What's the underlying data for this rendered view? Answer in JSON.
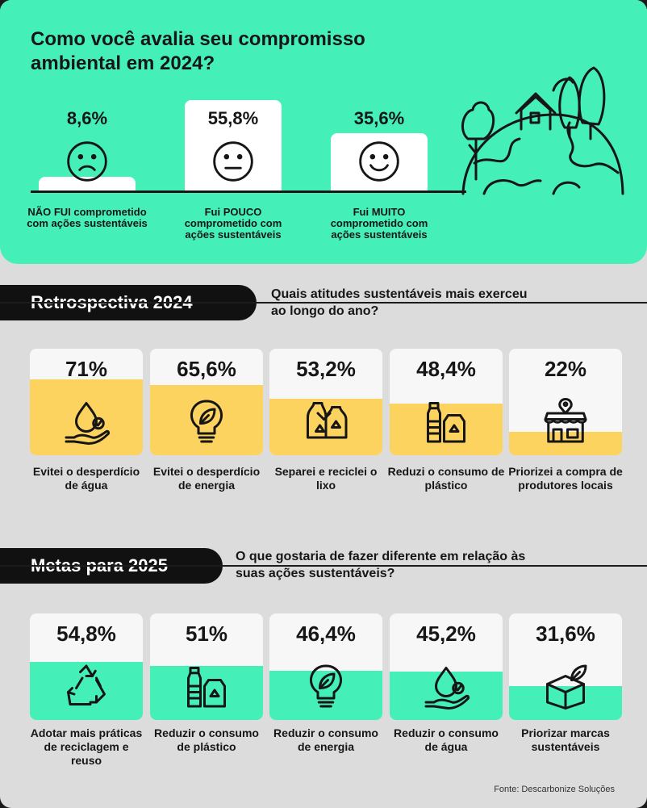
{
  "colors": {
    "mint": "#44f0b7",
    "yellow": "#fcd35f",
    "white": "#ffffff",
    "card": "#f7f7f7",
    "dark": "#111111"
  },
  "survey": {
    "title": "Como você avalia seu compromisso ambiental em 2024?",
    "icon": "earth-with-house-and-trees-icon"
  },
  "retro": {
    "tag": "Retrospectiva 2024",
    "question": "Quais atitudes sustentáveis mais exerceu ao longo do ano?"
  },
  "metas": {
    "tag": "Metas para 2025",
    "question": "O que gostaria de fazer diferente em relação às suas ações sustentáveis?"
  },
  "source": "Fonte: Descarbonize Soluções",
  "chart_data": [
    {
      "type": "bar",
      "id": "avaliacao",
      "title": "Como você avalia seu compromisso ambiental em 2024?",
      "categories": [
        "NÃO FUI comprometido com ações sustentáveis",
        "Fui POUCO comprometido com ações sustentáveis",
        "Fui MUITO comprometido com ações sustentáveis"
      ],
      "values": [
        8.6,
        55.8,
        35.6
      ],
      "labels": [
        "8,6%",
        "55,8%",
        "35,6%"
      ],
      "icons": [
        "sad-face-icon",
        "neutral-face-icon",
        "happy-face-icon"
      ],
      "ylim": [
        0,
        100
      ]
    },
    {
      "type": "bar",
      "id": "retrospectiva",
      "title": "Quais atitudes sustentáveis mais exerceu ao longo do ano?",
      "categories": [
        "Evitei o desperdício de água",
        "Evitei o desperdício de energia",
        "Separei e reciclei o lixo",
        "Reduzi o consumo de plástico",
        "Priorizei a compra de produtores locais"
      ],
      "values": [
        71,
        65.6,
        53.2,
        48.4,
        22
      ],
      "labels": [
        "71%",
        "65,6%",
        "53,2%",
        "48,4%",
        "22%"
      ],
      "icons": [
        "hand-water-drop-icon",
        "eco-lightbulb-icon",
        "recycling-bags-icon",
        "plastic-bottles-icon",
        "local-store-icon"
      ],
      "ylim": [
        0,
        100
      ]
    },
    {
      "type": "bar",
      "id": "metas",
      "title": "O que gostaria de fazer diferente em relação às suas ações sustentáveis?",
      "categories": [
        "Adotar mais práticas de reciclagem e reuso",
        "Reduzir o consumo de plástico",
        "Reduzir o consumo de energia",
        "Reduzir o consumo de água",
        "Priorizar marcas sustentáveis"
      ],
      "values": [
        54.8,
        51,
        46.4,
        45.2,
        31.6
      ],
      "labels": [
        "54,8%",
        "51%",
        "46,4%",
        "45,2%",
        "31,6%"
      ],
      "icons": [
        "recycle-arrows-icon",
        "plastic-bottles-icon",
        "eco-lightbulb-icon",
        "hand-water-drop-icon",
        "sustainable-box-icon"
      ],
      "ylim": [
        0,
        100
      ]
    }
  ]
}
